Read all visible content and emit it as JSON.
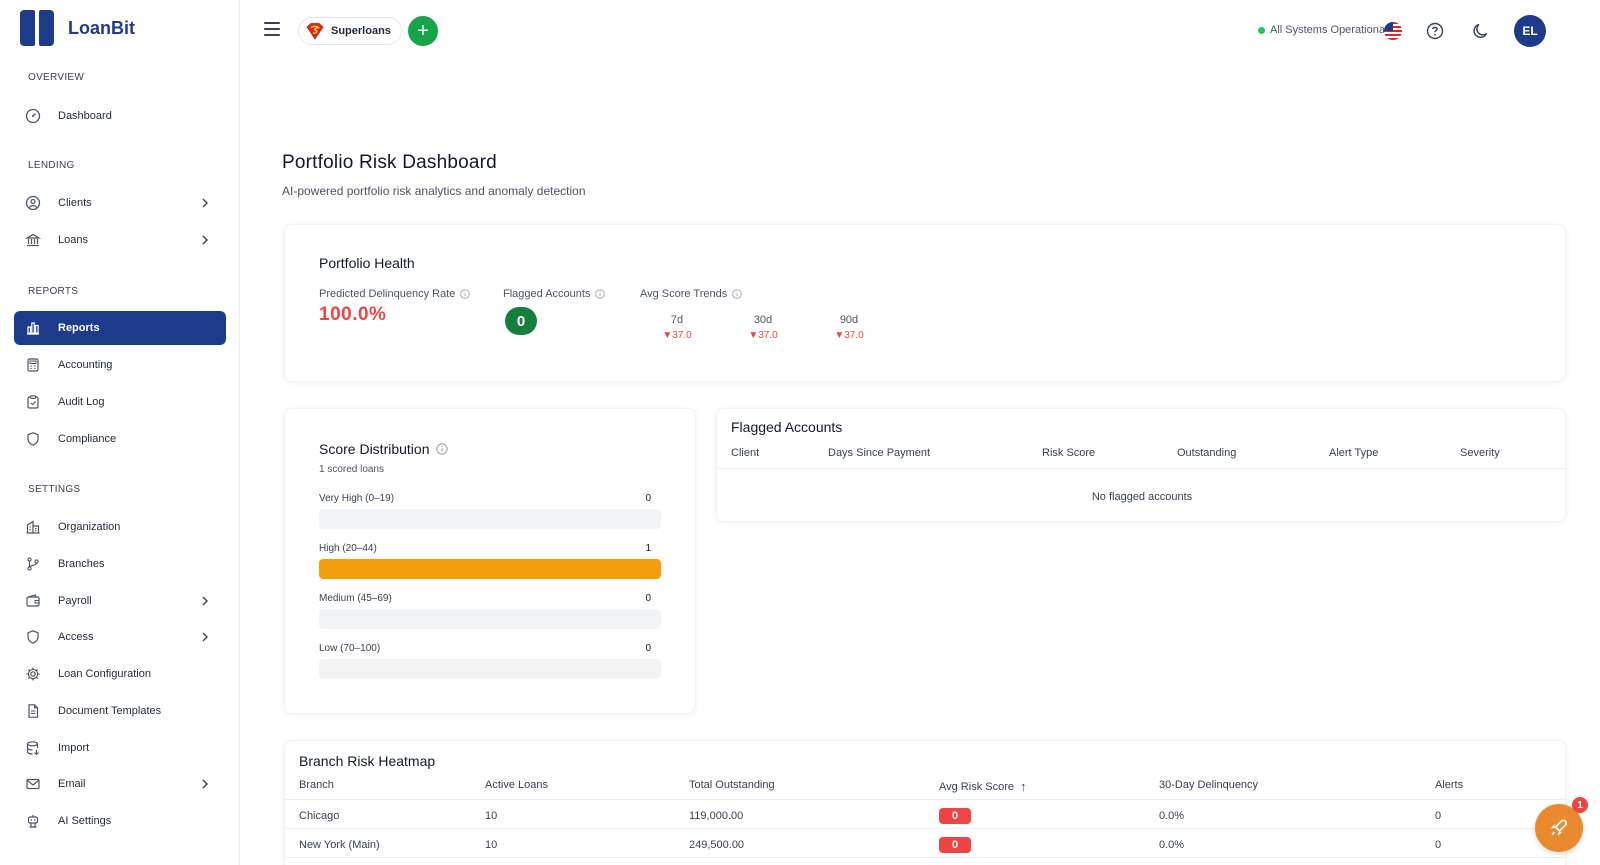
{
  "app": {
    "brand_name": "LoanBit"
  },
  "sidebar": {
    "sections": {
      "overview": "OVERVIEW",
      "lending": "LENDING",
      "reports": "REPORTS",
      "settings": "SETTINGS"
    },
    "items": {
      "dashboard": {
        "label": "Dashboard",
        "icon": "gauge-icon"
      },
      "clients": {
        "label": "Clients",
        "icon": "user-circle-icon"
      },
      "loans": {
        "label": "Loans",
        "icon": "bank-icon"
      },
      "reports": {
        "label": "Reports",
        "icon": "bar-chart-icon",
        "active": true
      },
      "accounting": {
        "label": "Accounting",
        "icon": "calculator-icon"
      },
      "audit_log": {
        "label": "Audit Log",
        "icon": "clipboard-icon"
      },
      "compliance": {
        "label": "Compliance",
        "icon": "shield-icon"
      },
      "organization": {
        "label": "Organization",
        "icon": "building-icon"
      },
      "branches": {
        "label": "Branches",
        "icon": "git-branch-icon"
      },
      "payroll": {
        "label": "Payroll",
        "icon": "wallet-icon"
      },
      "access": {
        "label": "Access",
        "icon": "shield-icon"
      },
      "loan_configuration": {
        "label": "Loan Configuration",
        "icon": "gear-icon"
      },
      "document_templates": {
        "label": "Document Templates",
        "icon": "document-icon"
      },
      "import": {
        "label": "Import",
        "icon": "database-icon"
      },
      "email": {
        "label": "Email",
        "icon": "mail-icon"
      },
      "ai_settings": {
        "label": "AI Settings",
        "icon": "robot-icon"
      }
    }
  },
  "topbar": {
    "org_name": "Superloans",
    "add_label": "+",
    "status_text": "All Systems Operational",
    "avatar_initials": "EL"
  },
  "page": {
    "title": "Portfolio Risk Dashboard",
    "subtitle": "AI-powered portfolio risk analytics and anomaly detection"
  },
  "portfolio_health": {
    "title": "Portfolio Health",
    "delinquency_label": "Predicted Delinquency Rate",
    "delinquency_value": "100.0%",
    "flagged_label": "Flagged Accounts",
    "flagged_value": "0",
    "trends_label": "Avg Score Trends",
    "trends": [
      {
        "period": "7d",
        "value": "▼37.0"
      },
      {
        "period": "30d",
        "value": "▼37.0"
      },
      {
        "period": "90d",
        "value": "▼37.0"
      }
    ]
  },
  "score_distribution": {
    "title": "Score Distribution",
    "subtitle": "1 scored loans",
    "rows": [
      {
        "label": "Very High (0–19)",
        "count": "0",
        "fraction": 0
      },
      {
        "label": "High (20–44)",
        "count": "1",
        "fraction": 1
      },
      {
        "label": "Medium (45–69)",
        "count": "0",
        "fraction": 0
      },
      {
        "label": "Low (70–100)",
        "count": "0",
        "fraction": 0
      }
    ],
    "fill_color": "#f59e0b"
  },
  "flagged_accounts": {
    "title": "Flagged Accounts",
    "columns": [
      "Client",
      "Days Since Payment",
      "Risk Score",
      "Outstanding",
      "Alert Type",
      "Severity"
    ],
    "empty_text": "No flagged accounts"
  },
  "branch_heatmap": {
    "title": "Branch Risk Heatmap",
    "columns": [
      "Branch",
      "Active Loans",
      "Total Outstanding",
      "Avg Risk Score",
      "30-Day Delinquency",
      "Alerts"
    ],
    "sort_indicator": "↑",
    "rows": [
      {
        "branch": "Chicago",
        "active_loans": "10",
        "total_outstanding": "119,000.00",
        "avg_risk_score": "0",
        "delinquency": "0.0%",
        "alerts": "0"
      },
      {
        "branch": "New York (Main)",
        "active_loans": "10",
        "total_outstanding": "249,500.00",
        "avg_risk_score": "0",
        "delinquency": "0.0%",
        "alerts": "0"
      }
    ]
  },
  "fab": {
    "badge": "1",
    "icon": "rocket-icon"
  },
  "colors": {
    "brand": "#1e3a8a",
    "danger": "#ef4444",
    "success": "#15803d",
    "warning": "#f59e0b",
    "fab": "#ea8a2e"
  }
}
